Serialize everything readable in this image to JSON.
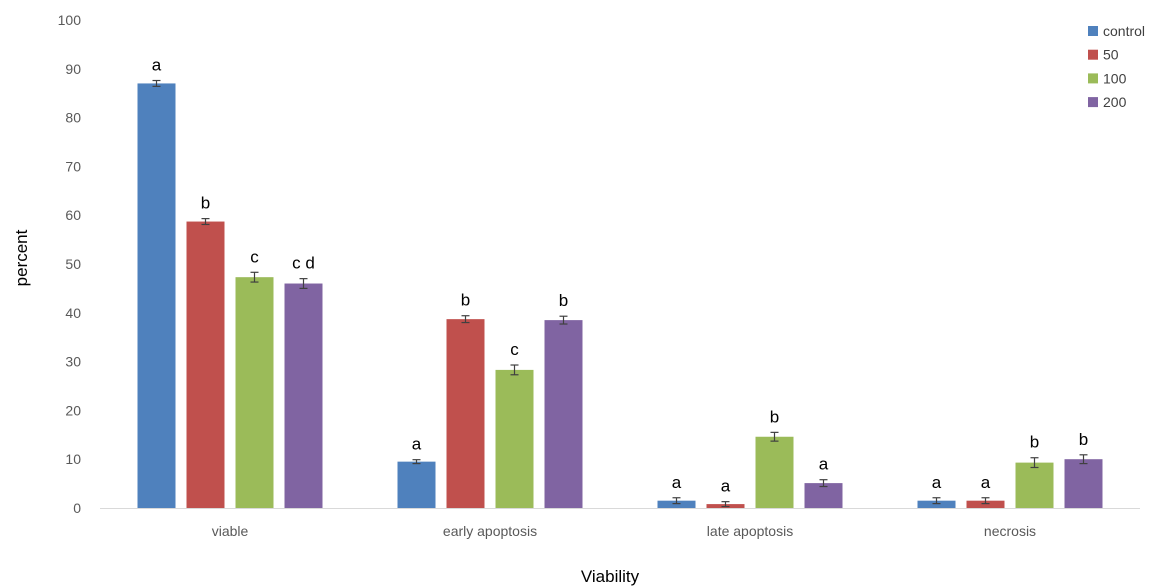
{
  "chart_data": {
    "type": "bar",
    "title": "",
    "xlabel": "Viability",
    "ylabel": "percent",
    "ylim": [
      0,
      100
    ],
    "yticks": [
      "0",
      "10",
      "20",
      "30",
      "40",
      "50",
      "60",
      "70",
      "80",
      "90",
      "100"
    ],
    "categories": [
      "viable",
      "early apoptosis",
      "late apoptosis",
      "necrosis"
    ],
    "legend_position": "top-right",
    "grid": false,
    "series": [
      {
        "name": "control",
        "color": "#4F81BD",
        "values": [
          87,
          9.5,
          1.5,
          1.5
        ],
        "errors": [
          0.6,
          0.4,
          0.6,
          0.6
        ],
        "labels": [
          "a",
          "a",
          "a",
          "a"
        ]
      },
      {
        "name": "50",
        "color": "#C0504D",
        "values": [
          58.7,
          38.7,
          0.8,
          1.5
        ],
        "errors": [
          0.6,
          0.7,
          0.5,
          0.6
        ],
        "labels": [
          "b",
          "b",
          "a",
          "a"
        ]
      },
      {
        "name": "100",
        "color": "#9BBB59",
        "values": [
          47.3,
          28.3,
          14.6,
          9.3
        ],
        "errors": [
          1.0,
          1.0,
          0.9,
          1.0
        ],
        "labels": [
          "c",
          "c",
          "b",
          "b"
        ]
      },
      {
        "name": "200",
        "color": "#8064A2",
        "values": [
          46,
          38.5,
          5.1,
          10
        ],
        "errors": [
          1.0,
          0.8,
          0.7,
          0.9
        ],
        "labels": [
          "c d",
          "b",
          "a",
          "b"
        ]
      }
    ]
  }
}
